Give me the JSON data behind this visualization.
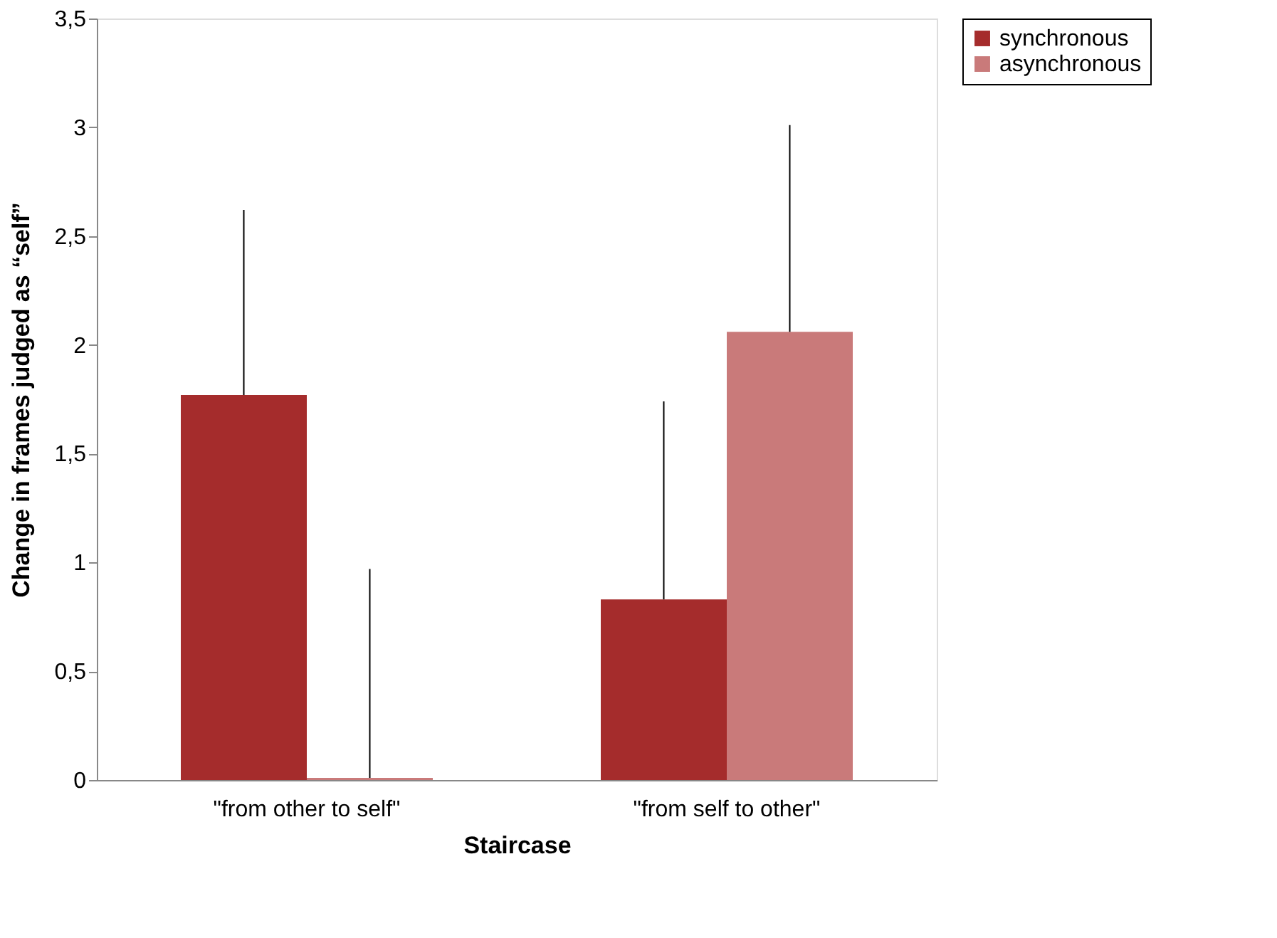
{
  "chart_data": {
    "type": "bar",
    "xlabel": "Staircase",
    "ylabel": "Change  in frames judged as “self”",
    "categories": [
      "\"from other to self\"",
      "\"from self to other\""
    ],
    "series": [
      {
        "name": "synchronous",
        "color": "#a52c2c",
        "values": [
          1.77,
          0.83
        ],
        "errors": [
          [
            1.77,
            2.62
          ],
          [
            0.83,
            1.74
          ]
        ]
      },
      {
        "name": "asynchronous",
        "color": "#c97a7a",
        "values": [
          0.01,
          2.06
        ],
        "errors": [
          [
            0.01,
            0.97
          ],
          [
            2.06,
            3.01
          ]
        ]
      }
    ],
    "ylim": [
      0,
      3.5
    ],
    "yticks": [
      0,
      {
        "value": 0.5,
        "label": "0,5"
      },
      1,
      {
        "value": 1.5,
        "label": "1,5"
      },
      2,
      {
        "value": 2.5,
        "label": "2,5"
      },
      3,
      {
        "value": 3.5,
        "label": "3,5"
      }
    ],
    "grid": false,
    "legend": "right"
  }
}
